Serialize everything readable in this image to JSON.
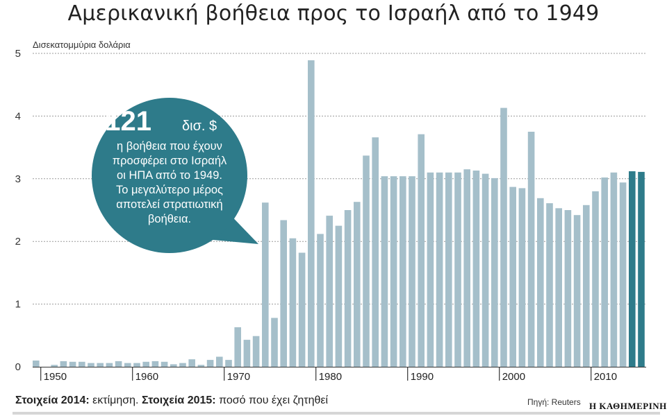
{
  "title": "Αμερικανική βοήθεια προς το Ισραήλ από το 1949",
  "chart_data": {
    "type": "bar",
    "ylabel": "Δισεκατομμύρια δολάρια",
    "ylim": [
      0,
      5
    ],
    "yticks": [
      0,
      1,
      2,
      3,
      4,
      5
    ],
    "grid": true,
    "x_tick_labels": [
      "1950",
      "1960",
      "1970",
      "1980",
      "1990",
      "2000",
      "2010"
    ],
    "x": [
      1949,
      1950,
      1951,
      1952,
      1953,
      1954,
      1955,
      1956,
      1957,
      1958,
      1959,
      1960,
      1961,
      1962,
      1963,
      1964,
      1965,
      1966,
      1967,
      1968,
      1969,
      1970,
      1971,
      1972,
      1973,
      1974,
      1975,
      1976,
      1977,
      1978,
      1979,
      1980,
      1981,
      1982,
      1983,
      1984,
      1985,
      1986,
      1987,
      1988,
      1989,
      1990,
      1991,
      1992,
      1993,
      1994,
      1995,
      1996,
      1997,
      1998,
      1999,
      2000,
      2001,
      2002,
      2003,
      2004,
      2005,
      2006,
      2007,
      2008,
      2009,
      2010,
      2011,
      2012,
      2013,
      2014,
      2015
    ],
    "values": [
      0.1,
      0.0,
      0.03,
      0.09,
      0.08,
      0.08,
      0.06,
      0.06,
      0.06,
      0.09,
      0.06,
      0.06,
      0.08,
      0.09,
      0.08,
      0.04,
      0.06,
      0.12,
      0.03,
      0.11,
      0.16,
      0.11,
      0.63,
      0.43,
      0.49,
      2.62,
      0.78,
      2.34,
      2.05,
      1.82,
      4.89,
      2.12,
      2.41,
      2.25,
      2.5,
      2.63,
      3.37,
      3.66,
      3.04,
      3.04,
      3.04,
      3.04,
      3.71,
      3.1,
      3.1,
      3.1,
      3.1,
      3.15,
      3.13,
      3.08,
      3.01,
      4.13,
      2.87,
      2.85,
      3.75,
      2.69,
      2.61,
      2.53,
      2.5,
      2.42,
      2.58,
      2.8,
      3.02,
      3.1,
      2.94,
      3.12,
      3.11
    ],
    "highlight_years": [
      2014,
      2015
    ],
    "colors": {
      "bar": "#a5bfca",
      "highlight": "#2e7b8a",
      "callout": "#2e7b8a",
      "grid": "#9a9a9a"
    }
  },
  "callout": {
    "big_number": "121",
    "unit": "δισ. $",
    "lines": [
      "η βοήθεια που έχουν",
      "προσφέρει στο Ισραήλ",
      "οι ΗΠΑ από το 1949.",
      "Το μεγαλύτερο μέρος",
      "αποτελεί στρατιωτική",
      "βοήθεια."
    ]
  },
  "footnote": {
    "label_2014": "Στοιχεία 2014:",
    "text_2014": " εκτίμηση. ",
    "label_2015": "Στοιχεία 2015:",
    "text_2015": " ποσό που έχει ζητηθεί"
  },
  "source": "Πηγή: Reuters",
  "brand": "Η ΚΑΘΗΜΕΡΙΝΗ"
}
